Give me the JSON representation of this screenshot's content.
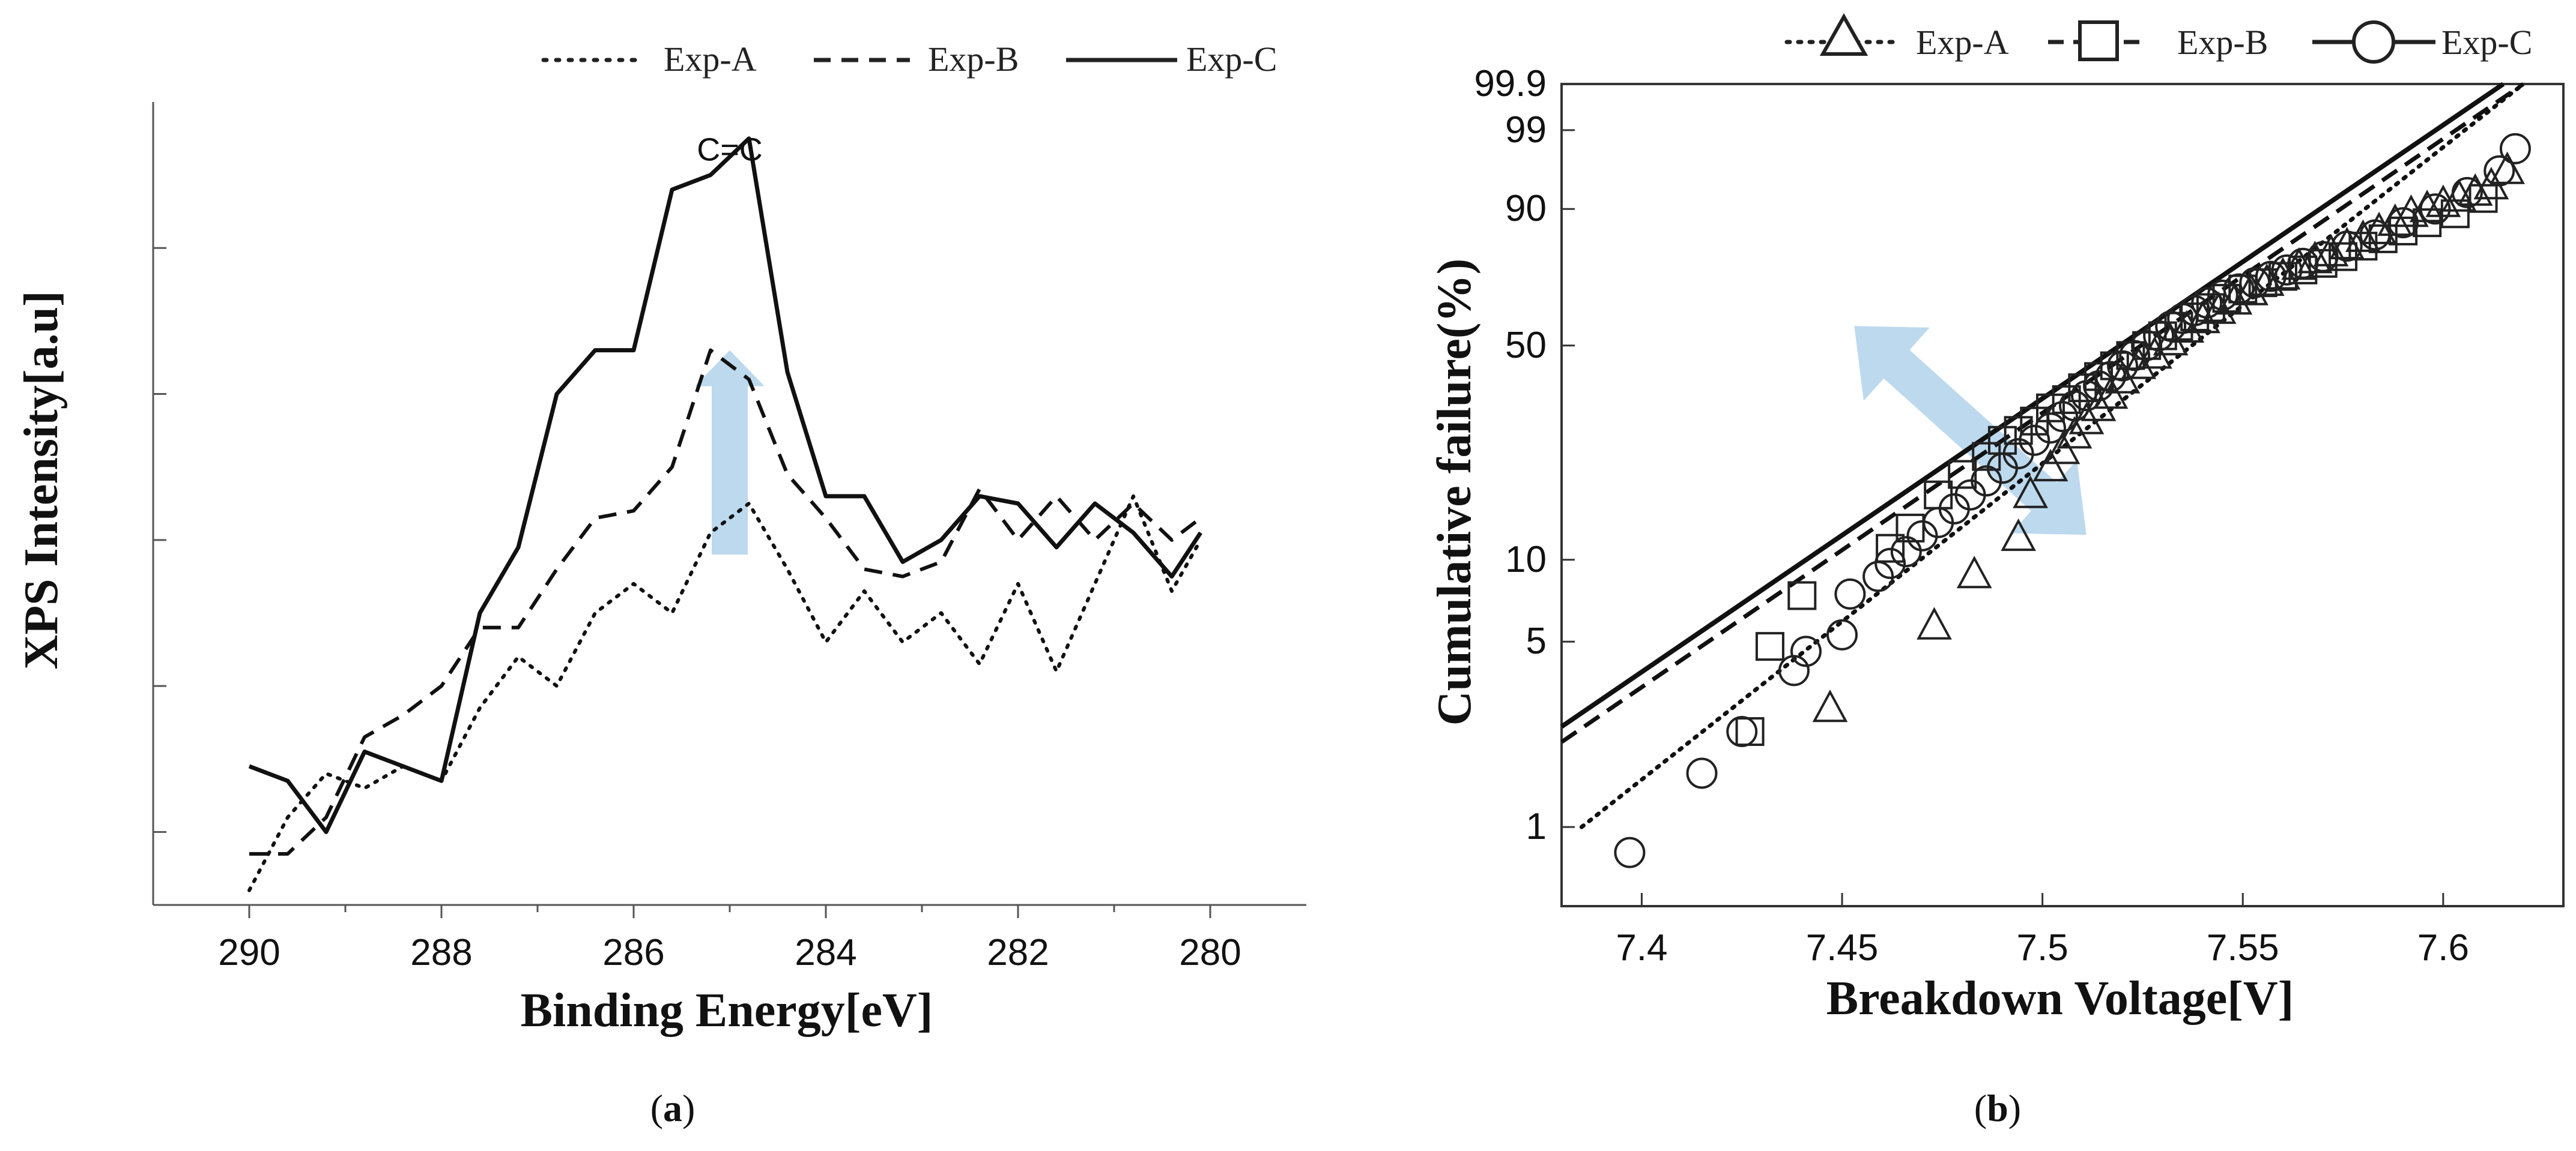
{
  "chart_data": [
    {
      "type": "line",
      "panel_label_prefix": "(",
      "panel_label": "a",
      "panel_label_suffix": ")",
      "xlabel": "Binding Energy[eV]",
      "ylabel": "XPS Intensity[a.u]",
      "xlim": [
        291,
        279
      ],
      "ylim": [
        0,
        11
      ],
      "x_ticks": [
        290,
        288,
        286,
        284,
        282,
        280
      ],
      "legend": [
        "Exp-A",
        "Exp-B",
        "Exp-C"
      ],
      "legend_position": "top",
      "grid": false,
      "annotations": [
        {
          "text": "C=C",
          "x": 285,
          "y": 10.2
        },
        {
          "text": "",
          "kind": "up-arrow",
          "x": 285,
          "from": 4.8,
          "to": 7.6
        }
      ],
      "series": [
        {
          "name": "Exp-A",
          "style": "dotted",
          "x": [
            290,
            289.6,
            289.2,
            288.8,
            288.4,
            288,
            287.6,
            287.2,
            286.8,
            286.4,
            286,
            285.6,
            285.2,
            284.8,
            284.4,
            284,
            283.6,
            283.2,
            282.8,
            282.4,
            282,
            281.6,
            281.2,
            280.8,
            280.4,
            280.1
          ],
          "values": [
            0.2,
            1.2,
            1.8,
            1.6,
            1.9,
            1.7,
            2.7,
            3.4,
            3.0,
            4.0,
            4.4,
            4.0,
            5.1,
            5.5,
            4.6,
            3.6,
            4.3,
            3.6,
            4.0,
            3.3,
            4.4,
            3.2,
            4.4,
            5.6,
            4.3,
            5.0
          ]
        },
        {
          "name": "Exp-B",
          "style": "dashed",
          "x": [
            290,
            289.6,
            289.2,
            288.8,
            288.4,
            288,
            287.6,
            287.2,
            286.8,
            286.4,
            286,
            285.6,
            285.2,
            284.8,
            284.4,
            284,
            283.6,
            283.2,
            282.8,
            282.4,
            282,
            281.6,
            281.2,
            280.8,
            280.4,
            280.1
          ],
          "values": [
            0.7,
            0.7,
            1.2,
            2.3,
            2.6,
            3.0,
            3.8,
            3.8,
            4.6,
            5.3,
            5.4,
            6.0,
            7.6,
            7.2,
            5.9,
            5.3,
            4.6,
            4.5,
            4.7,
            5.7,
            5.0,
            5.6,
            5.0,
            5.5,
            5.0,
            5.3
          ]
        },
        {
          "name": "Exp-C",
          "style": "solid",
          "x": [
            290,
            289.6,
            289.2,
            288.8,
            288.4,
            288,
            287.6,
            287.2,
            286.8,
            286.4,
            286,
            285.6,
            285.2,
            284.8,
            284.4,
            284,
            283.6,
            283.2,
            282.8,
            282.4,
            282,
            281.6,
            281.2,
            280.8,
            280.4,
            280.1
          ],
          "values": [
            1.9,
            1.7,
            1.0,
            2.1,
            1.9,
            1.7,
            4.0,
            4.9,
            7.0,
            7.6,
            7.6,
            9.8,
            10.0,
            10.5,
            7.3,
            5.6,
            5.6,
            4.7,
            5.0,
            5.6,
            5.5,
            4.9,
            5.5,
            5.1,
            4.5,
            5.1
          ]
        }
      ]
    },
    {
      "type": "scatter",
      "panel_label_prefix": "(",
      "panel_label": "b",
      "panel_label_suffix": ")",
      "xlabel": "Breakdown Voltage[V]",
      "ylabel": "Cumulative failure(%)",
      "xlim": [
        7.38,
        7.63
      ],
      "y_scale": "weibull-probability",
      "ylim": [
        0.5,
        99.9
      ],
      "x_ticks": [
        "7.4",
        "7.45",
        "7.5",
        "7.55",
        "7.6"
      ],
      "y_ticks": [
        "1",
        "5",
        "10",
        "50",
        "90",
        "99",
        "99.9"
      ],
      "legend": [
        "Exp-A",
        "Exp-B",
        "Exp-C"
      ],
      "legend_position": "top",
      "grid": false,
      "annotations": [
        {
          "text": "",
          "kind": "double-arrow",
          "direction": "diagonal"
        }
      ],
      "series": [
        {
          "name": "Exp-A",
          "marker": "triangle",
          "line": "dotted",
          "fit": {
            "x": [
              7.385,
              7.62
            ],
            "y": [
              1.0,
              99.9
            ]
          },
          "x": [
            7.447,
            7.473,
            7.483,
            7.494,
            7.497,
            7.502,
            7.505,
            7.508,
            7.511,
            7.514,
            7.517,
            7.52,
            7.524,
            7.528,
            7.532,
            7.536,
            7.54,
            7.544,
            7.548,
            7.552,
            7.556,
            7.56,
            7.564,
            7.568,
            7.572,
            7.576,
            7.58,
            7.584,
            7.588,
            7.592,
            7.596,
            7.6,
            7.604,
            7.608,
            7.612,
            7.616
          ],
          "y": [
            2.8,
            5.7,
            8.8,
            12,
            17,
            21,
            24,
            27,
            30,
            33,
            36,
            40,
            44,
            47,
            51,
            55,
            58,
            61,
            64,
            67,
            70,
            72,
            75,
            77,
            79,
            81,
            83,
            85,
            87,
            89,
            90,
            91,
            92,
            93,
            94,
            96
          ]
        },
        {
          "name": "Exp-B",
          "marker": "square",
          "line": "dashed",
          "fit": {
            "x": [
              7.38,
              7.62
            ],
            "y": [
              2.1,
              99.9
            ]
          },
          "x": [
            7.427,
            7.432,
            7.44,
            7.462,
            7.467,
            7.474,
            7.48,
            7.486,
            7.49,
            7.494,
            7.498,
            7.502,
            7.506,
            7.51,
            7.514,
            7.518,
            7.522,
            7.526,
            7.53,
            7.534,
            7.538,
            7.542,
            7.546,
            7.55,
            7.555,
            7.56,
            7.565,
            7.57,
            7.575,
            7.58,
            7.585,
            7.59,
            7.596,
            7.603,
            7.61
          ],
          "y": [
            2.3,
            4.8,
            7.4,
            11,
            13,
            17,
            20,
            23,
            26,
            28,
            30,
            33,
            35,
            38,
            41,
            44,
            47,
            50,
            53,
            56,
            59,
            62,
            65,
            68,
            70,
            72,
            74,
            76,
            78,
            81,
            83,
            85,
            87,
            89,
            92
          ]
        },
        {
          "name": "Exp-C",
          "marker": "circle",
          "line": "solid",
          "fit": {
            "x": [
              7.38,
              7.615
            ],
            "y": [
              2.4,
              99.9
            ]
          },
          "x": [
            7.397,
            7.415,
            7.425,
            7.438,
            7.441,
            7.45,
            7.452,
            7.459,
            7.462,
            7.466,
            7.47,
            7.474,
            7.478,
            7.482,
            7.486,
            7.49,
            7.494,
            7.498,
            7.502,
            7.505,
            7.508,
            7.511,
            7.514,
            7.517,
            7.52,
            7.523,
            7.526,
            7.529,
            7.532,
            7.535,
            7.538,
            7.541,
            7.545,
            7.549,
            7.553,
            7.557,
            7.561,
            7.565,
            7.57,
            7.576,
            7.583,
            7.59,
            7.598,
            7.606,
            7.614,
            7.618
          ],
          "y": [
            0.8,
            1.6,
            2.3,
            3.9,
            4.6,
            5.3,
            7.5,
            8.7,
            9.7,
            10.7,
            12.2,
            13.6,
            15.2,
            17,
            19,
            21,
            23.5,
            26,
            28.5,
            31,
            33.5,
            36,
            38.5,
            41,
            44,
            47,
            50,
            53,
            56,
            58.5,
            61,
            63.5,
            66,
            68,
            70,
            72,
            74,
            76,
            78,
            81,
            84,
            87,
            90,
            93,
            96,
            98
          ]
        }
      ]
    }
  ]
}
